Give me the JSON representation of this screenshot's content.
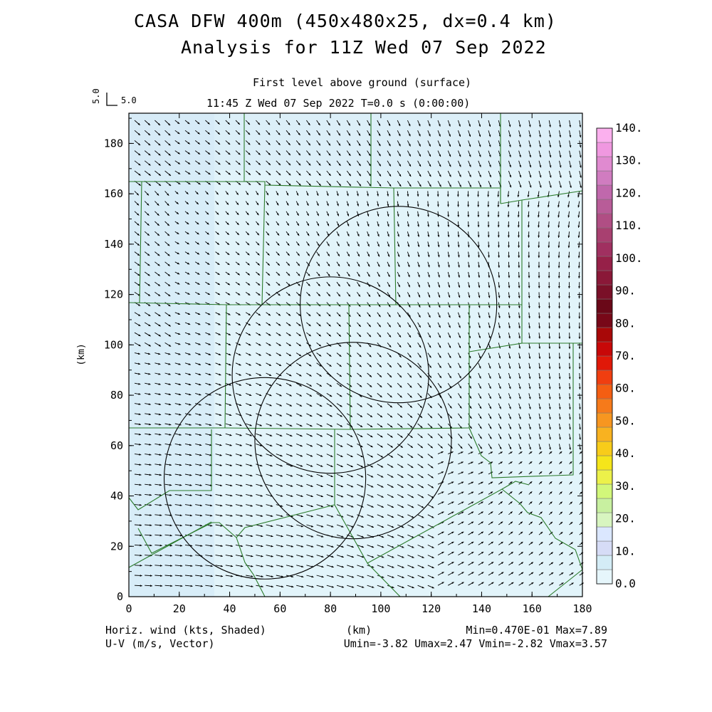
{
  "header": {
    "title_line1": "CASA DFW 400m (450x480x25, dx=0.4 km)",
    "title_line2": "Analysis for 11Z Wed 07 Sep 2022",
    "level": "First level above ground (surface)",
    "time": "11:45 Z Wed 07 Sep 2022    T=0.0 s (0:00:00)"
  },
  "reference_vector": {
    "label_vertical": "5.0",
    "label": "5.0"
  },
  "footer": {
    "left_line1": "Horiz. wind (kts, Shaded)",
    "left_line2": "U-V (m/s, Vector)",
    "center": "(km)",
    "right_line1": "Min=0.470E-01 Max=7.89",
    "right_line2": "Umin=-3.82 Umax=2.47 Vmin=-2.82 Vmax=3.57"
  },
  "colors": {
    "background_field": "#e2f4fa",
    "county_lines": "#2a7a2a",
    "circles": "#000000",
    "vectors": "#000000"
  },
  "chart_data": {
    "type": "vector-field",
    "xlabel": "(km)",
    "ylabel": "(km)",
    "xlim": [
      0,
      180
    ],
    "ylim": [
      0,
      192
    ],
    "xticks": [
      0,
      20,
      40,
      60,
      80,
      100,
      120,
      140,
      160,
      180
    ],
    "yticks": [
      0,
      20,
      40,
      60,
      80,
      100,
      120,
      140,
      160,
      180
    ],
    "shaded_field": "Horiz. wind (kts)",
    "vector_field": "U-V (m/s)",
    "stats": {
      "min": 0.047,
      "max": 7.89,
      "umin": -3.82,
      "umax": 2.47,
      "vmin": -2.82,
      "vmax": 3.57
    },
    "colorbar": {
      "labels": [
        "0.0",
        "10.",
        "20.",
        "30.",
        "40.",
        "50.",
        "60.",
        "70.",
        "80.",
        "90.",
        "100.",
        "110.",
        "120.",
        "130.",
        "140."
      ],
      "colors": [
        "#e6f6fb",
        "#d4ecf6",
        "#d6dcf6",
        "#dbe7ff",
        "#d8f5c0",
        "#c8f0a0",
        "#d2f77a",
        "#ecf14a",
        "#f5e51a",
        "#f8cc1a",
        "#f8b220",
        "#f79620",
        "#f67a1a",
        "#f45e12",
        "#f03e10",
        "#e01808",
        "#c80808",
        "#a80808",
        "#780818",
        "#6a0818",
        "#7a1028",
        "#8a1838",
        "#962048",
        "#a03060",
        "#a84070",
        "#b04e84",
        "#b85c98",
        "#c068ac",
        "#d07cc0",
        "#e08ad0",
        "#f098e0",
        "#fbb0ee"
      ]
    },
    "radar_circles": [
      {
        "name": "circle-1",
        "center_km": [
          107,
          116
        ],
        "radius_km": 39
      },
      {
        "name": "circle-2",
        "center_km": [
          80,
          88
        ],
        "radius_km": 39
      },
      {
        "name": "circle-3",
        "center_km": [
          89,
          62
        ],
        "radius_km": 39
      },
      {
        "name": "circle-4",
        "center_km": [
          54,
          47
        ],
        "radius_km": 40
      }
    ]
  }
}
